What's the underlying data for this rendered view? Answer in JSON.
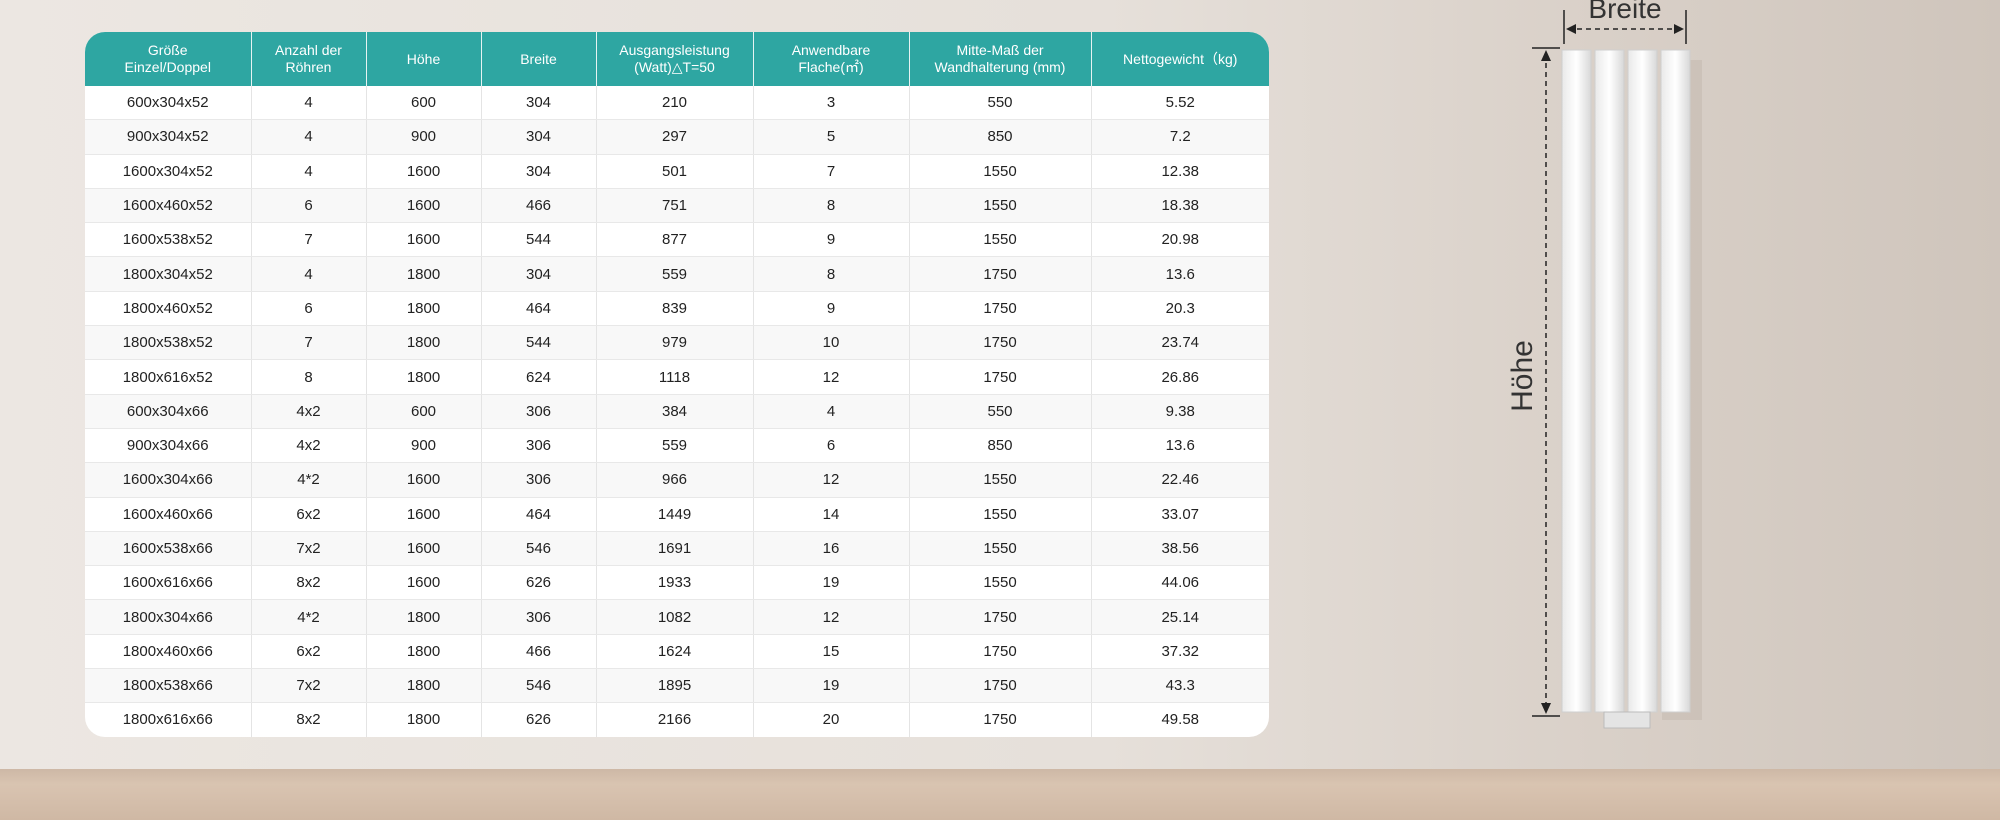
{
  "table": {
    "header": [
      "Größe\nEinzel/Doppel",
      "Anzahl der\nRöhren",
      "Höhe",
      "Breite",
      "Ausgangsleistung\n(Watt)△T=50",
      "Anwendbare\nFlache(㎡)",
      "Mitte-Maß der\nWandhalterung (mm)",
      "Nettogewicht（kg)"
    ],
    "rows": [
      [
        "600x304x52",
        "4",
        "600",
        "304",
        "210",
        "3",
        "550",
        "5.52"
      ],
      [
        "900x304x52",
        "4",
        "900",
        "304",
        "297",
        "5",
        "850",
        "7.2"
      ],
      [
        "1600x304x52",
        "4",
        "1600",
        "304",
        "501",
        "7",
        "1550",
        "12.38"
      ],
      [
        "1600x460x52",
        "6",
        "1600",
        "466",
        "751",
        "8",
        "1550",
        "18.38"
      ],
      [
        "1600x538x52",
        "7",
        "1600",
        "544",
        "877",
        "9",
        "1550",
        "20.98"
      ],
      [
        "1800x304x52",
        "4",
        "1800",
        "304",
        "559",
        "8",
        "1750",
        "13.6"
      ],
      [
        "1800x460x52",
        "6",
        "1800",
        "464",
        "839",
        "9",
        "1750",
        "20.3"
      ],
      [
        "1800x538x52",
        "7",
        "1800",
        "544",
        "979",
        "10",
        "1750",
        "23.74"
      ],
      [
        "1800x616x52",
        "8",
        "1800",
        "624",
        "1118",
        "12",
        "1750",
        "26.86"
      ],
      [
        "600x304x66",
        "4x2",
        "600",
        "306",
        "384",
        "4",
        "550",
        "9.38"
      ],
      [
        "900x304x66",
        "4x2",
        "900",
        "306",
        "559",
        "6",
        "850",
        "13.6"
      ],
      [
        "1600x304x66",
        "4*2",
        "1600",
        "306",
        "966",
        "12",
        "1550",
        "22.46"
      ],
      [
        "1600x460x66",
        "6x2",
        "1600",
        "464",
        "1449",
        "14",
        "1550",
        "33.07"
      ],
      [
        "1600x538x66",
        "7x2",
        "1600",
        "546",
        "1691",
        "16",
        "1550",
        "38.56"
      ],
      [
        "1600x616x66",
        "8x2",
        "1600",
        "626",
        "1933",
        "19",
        "1550",
        "44.06"
      ],
      [
        "1800x304x66",
        "4*2",
        "1800",
        "306",
        "1082",
        "12",
        "1750",
        "25.14"
      ],
      [
        "1800x460x66",
        "6x2",
        "1800",
        "466",
        "1624",
        "15",
        "1750",
        "37.32"
      ],
      [
        "1800x538x66",
        "7x2",
        "1800",
        "546",
        "1895",
        "19",
        "1750",
        "43.3"
      ],
      [
        "1800x616x66",
        "8x2",
        "1800",
        "626",
        "2166",
        "20",
        "1750",
        "49.58"
      ]
    ]
  },
  "diagram": {
    "width_label": "Breite",
    "height_label": "Höhe"
  }
}
